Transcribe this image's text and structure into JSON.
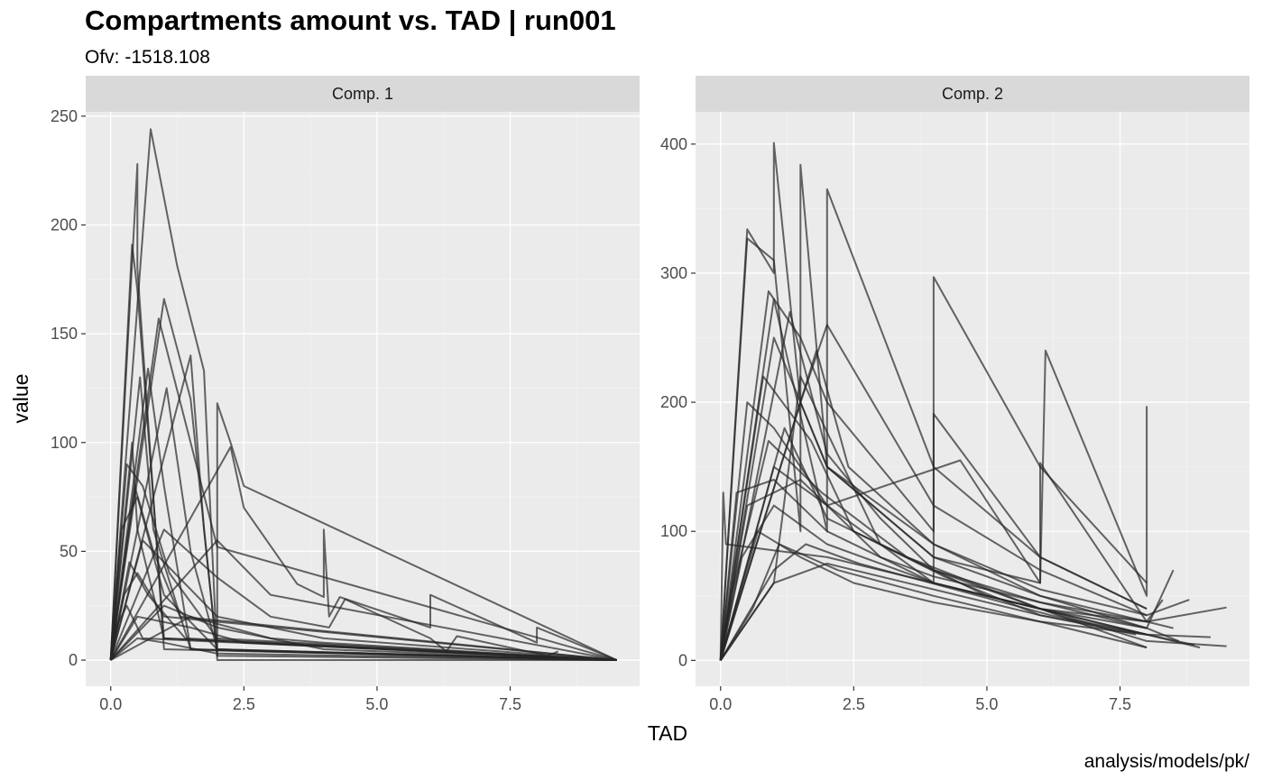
{
  "title": "Compartments amount vs. TAD | run001",
  "subtitle": "Ofv: -1518.108",
  "caption": "analysis/models/pk/",
  "colors": {
    "panel_background": "#ebebeb",
    "strip_background": "#d9d9d9",
    "grid_major": "#ffffff",
    "grid_minor": "#f2f2f2",
    "line": "#262626"
  },
  "chart_data": {
    "type": "line",
    "xlabel": "TAD",
    "ylabel": "value",
    "line_opacity": 0.7,
    "grid": true,
    "facets": [
      {
        "label": "Comp.  1",
        "xlim": [
          -0.47,
          9.93
        ],
        "ylim": [
          -12,
          252
        ],
        "x_ticks": [
          0,
          2.5,
          5,
          7.5
        ],
        "x_tick_labels": [
          "0.0",
          "2.5",
          "5.0",
          "7.5"
        ],
        "y_ticks": [
          0,
          50,
          100,
          150,
          200,
          250
        ],
        "y_tick_labels": [
          "0",
          "50",
          "100",
          "150",
          "200",
          "250"
        ],
        "series": [
          {
            "x": [
              0,
              0.75,
              1.25,
              1.75,
              2.0,
              9.5
            ],
            "y": [
              0,
              244,
              181,
              133,
              0,
              0
            ]
          },
          {
            "x": [
              0,
              0.5,
              0.5,
              1.0,
              9.5
            ],
            "y": [
              0,
              228,
              180,
              5,
              0
            ]
          },
          {
            "x": [
              0,
              0.4,
              0.5,
              1.0,
              9.5
            ],
            "y": [
              0,
              191,
              170,
              10,
              0
            ]
          },
          {
            "x": [
              0,
              1.0,
              1.5,
              2.0,
              2.0,
              2.25,
              2.5,
              9.5
            ],
            "y": [
              0,
              166,
              120,
              2,
              118,
              100,
              80,
              0
            ]
          },
          {
            "x": [
              0,
              0.9,
              1.5,
              2.0,
              9.5
            ],
            "y": [
              0,
              157,
              100,
              52,
              0
            ]
          },
          {
            "x": [
              0,
              1.5,
              1.75,
              2.0,
              9.5
            ],
            "y": [
              0,
              140,
              60,
              2,
              0
            ]
          },
          {
            "x": [
              0,
              0.7,
              1.0,
              1.5,
              9.5
            ],
            "y": [
              0,
              134,
              80,
              5,
              0
            ]
          },
          {
            "x": [
              0,
              0.55,
              0.8,
              1.5,
              9.5
            ],
            "y": [
              0,
              130,
              60,
              5,
              0
            ]
          },
          {
            "x": [
              0,
              2.25,
              2.5,
              3.5,
              4.0,
              4.0,
              4.1,
              4.3,
              6.0,
              6.0,
              8.0,
              8.0,
              9.5
            ],
            "y": [
              0,
              98,
              70,
              35,
              29,
              60,
              20,
              29,
              15,
              30,
              8,
              15,
              0
            ]
          },
          {
            "x": [
              0,
              0.4,
              0.5,
              1.0,
              9.5
            ],
            "y": [
              0,
              100,
              60,
              10,
              0
            ]
          },
          {
            "x": [
              0,
              1.05,
              1.5,
              2.0,
              9.5
            ],
            "y": [
              0,
              125,
              50,
              5,
              0
            ]
          },
          {
            "x": [
              0,
              0.3,
              0.6,
              1.1,
              2.0,
              9.5
            ],
            "y": [
              0,
              90,
              80,
              40,
              10,
              0
            ]
          },
          {
            "x": [
              0,
              0.45,
              0.8,
              1.3,
              9.5
            ],
            "y": [
              0,
              80,
              50,
              20,
              0
            ]
          },
          {
            "x": [
              0,
              0.2,
              0.5,
              1.0,
              2.0,
              9.5
            ],
            "y": [
              0,
              60,
              75,
              30,
              5,
              0
            ]
          },
          {
            "x": [
              0,
              1.0,
              2.0,
              3.0,
              4.1,
              4.4,
              6.0,
              6.3,
              6.5,
              8.2,
              8.4
            ],
            "y": [
              0,
              60,
              38,
              20,
              15,
              28,
              10,
              4,
              11,
              2,
              4
            ]
          },
          {
            "x": [
              0,
              0.6,
              1.2,
              2.0,
              4.0,
              9.5
            ],
            "y": [
              0,
              55,
              40,
              20,
              10,
              0
            ]
          },
          {
            "x": [
              0,
              0.35,
              0.7,
              1.4,
              9.5
            ],
            "y": [
              0,
              45,
              30,
              10,
              0
            ]
          },
          {
            "x": [
              0,
              0.25,
              0.5,
              1.0,
              9.5
            ],
            "y": [
              0,
              30,
              40,
              20,
              0
            ]
          },
          {
            "x": [
              0,
              0.5,
              1.5,
              2.5,
              9.5
            ],
            "y": [
              0,
              20,
              15,
              8,
              0
            ]
          },
          {
            "x": [
              0,
              1.0,
              2.0,
              4.0,
              9.5
            ],
            "y": [
              0,
              25,
              15,
              5,
              0
            ]
          },
          {
            "x": [
              0,
              1.5,
              3.0,
              4.0,
              8.0,
              9.5
            ],
            "y": [
              0,
              20,
              10,
              8,
              2,
              0
            ]
          },
          {
            "x": [
              0,
              2.0,
              3.0,
              9.5
            ],
            "y": [
              0,
              55,
              30,
              0
            ]
          },
          {
            "x": [
              0,
              0.5,
              1.0,
              2.0,
              9.5
            ],
            "y": [
              0,
              10,
              8,
              3,
              0
            ]
          },
          {
            "x": [
              0,
              0.1,
              0.3,
              0.6,
              9.5
            ],
            "y": [
              0,
              15,
              25,
              10,
              0
            ]
          }
        ]
      },
      {
        "label": "Comp.  2",
        "xlim": [
          -0.47,
          9.93
        ],
        "ylim": [
          -20,
          425
        ],
        "x_ticks": [
          0,
          2.5,
          5,
          7.5
        ],
        "x_tick_labels": [
          "0.0",
          "2.5",
          "5.0",
          "7.5"
        ],
        "y_ticks": [
          0,
          100,
          200,
          300,
          400
        ],
        "y_tick_labels": [
          "0",
          "100",
          "200",
          "300",
          "400"
        ],
        "series": [
          {
            "x": [
              0,
              0.5,
              1.0,
              1.0,
              1.5,
              2.0,
              4.0,
              6.0,
              8.0,
              8.5
            ],
            "y": [
              0,
              334,
              300,
              401,
              200,
              150,
              90,
              50,
              30,
              25
            ]
          },
          {
            "x": [
              0,
              0.5,
              1.0,
              1.5,
              1.5,
              2.0,
              4.0,
              6.0,
              8.0
            ],
            "y": [
              0,
              327,
              310,
              100,
              384,
              150,
              80,
              50,
              25
            ]
          },
          {
            "x": [
              0,
              1.0,
              2.0,
              2.0,
              4.0,
              6.0,
              8.0
            ],
            "y": [
              0,
              280,
              100,
              365,
              150,
              80,
              40
            ]
          },
          {
            "x": [
              0,
              0.9,
              1.5,
              2.0,
              4.0,
              4.0,
              6.0,
              8.0
            ],
            "y": [
              0,
              286,
              250,
              200,
              100,
              297,
              150,
              60
            ]
          },
          {
            "x": [
              0,
              1.0,
              2.0,
              4.0,
              6.0,
              6.1,
              8.0,
              8.0
            ],
            "y": [
              0,
              250,
              150,
              80,
              60,
              240,
              50,
              197
            ]
          },
          {
            "x": [
              0,
              1.5,
              2.0,
              4.0,
              6.0,
              8.0,
              8.8
            ],
            "y": [
              0,
              200,
              260,
              120,
              70,
              35,
              47
            ]
          },
          {
            "x": [
              0,
              0.5,
              1.0,
              2.0,
              4.0,
              4.0,
              6.0,
              8.0
            ],
            "y": [
              0,
              200,
              180,
              120,
              60,
              191,
              80,
              40
            ]
          },
          {
            "x": [
              0,
              1.0,
              2.0,
              4.5,
              6.0,
              6.0,
              8.0,
              8.3
            ],
            "y": [
              0,
              150,
              120,
              155,
              60,
              153,
              30,
              47
            ]
          },
          {
            "x": [
              0,
              0.3,
              1.0,
              2.0,
              4.0,
              6.0,
              8.0,
              8.5
            ],
            "y": [
              0,
              130,
              140,
              100,
              60,
              40,
              25,
              70
            ]
          },
          {
            "x": [
              0,
              1.2,
              2.0,
              4.0,
              6.0,
              8.0,
              9.5
            ],
            "y": [
              0,
              180,
              110,
              70,
              40,
              30,
              41
            ]
          },
          {
            "x": [
              0,
              0.7,
              1.5,
              2.5,
              4.0,
              6.0,
              8.0
            ],
            "y": [
              0,
              100,
              80,
              60,
              45,
              30,
              20
            ]
          },
          {
            "x": [
              0,
              1.0,
              1.5,
              3.0,
              5.0,
              7.0,
              8.0,
              9.0
            ],
            "y": [
              0,
              60,
              220,
              90,
              50,
              30,
              20,
              10
            ]
          },
          {
            "x": [
              0,
              0.4,
              1.0,
              2.0,
              4.0,
              6.0,
              8.0,
              9.5
            ],
            "y": [
              0,
              80,
              120,
              90,
              60,
              40,
              15,
              11
            ]
          },
          {
            "x": [
              0,
              0.6,
              1.1,
              2.2,
              4.0,
              6.0,
              8.0
            ],
            "y": [
              0,
              40,
              90,
              70,
              50,
              30,
              10
            ]
          },
          {
            "x": [
              0,
              1.3,
              2.0,
              3.0,
              4.0,
              6.0,
              8.0,
              8.6
            ],
            "y": [
              0,
              270,
              160,
              110,
              70,
              45,
              25,
              15
            ]
          },
          {
            "x": [
              0,
              0.8,
              1.7,
              2.5,
              4.2,
              6.0,
              7.8
            ],
            "y": [
              0,
              220,
              170,
              100,
              65,
              35,
              20
            ]
          },
          {
            "x": [
              0,
              1.0,
              2.0,
              4.0,
              6.0,
              8.0,
              9.2
            ],
            "y": [
              0,
              60,
              75,
              55,
              35,
              20,
              18
            ]
          },
          {
            "x": [
              0,
              0.5,
              1.5,
              3.0,
              4.0,
              6.0,
              8.0
            ],
            "y": [
              0,
              120,
              140,
              80,
              65,
              45,
              30
            ]
          },
          {
            "x": [
              0,
              1.8,
              2.4,
              4.0,
              6.0,
              8.0
            ],
            "y": [
              0,
              240,
              150,
              90,
              55,
              35
            ]
          },
          {
            "x": [
              0,
              0.2,
              0.9,
              1.9,
              3.5,
              6.0,
              8.0
            ],
            "y": [
              0,
              50,
              170,
              130,
              80,
              40,
              20
            ]
          },
          {
            "x": [
              0,
              1.0,
              1.6,
              2.6,
              4.4,
              6.2,
              8.0,
              8.9
            ],
            "y": [
              0,
              70,
              90,
              75,
              55,
              35,
              20,
              12
            ]
          },
          {
            "x": [
              0,
              0.05,
              0.1,
              2.0,
              6.0,
              8.0
            ],
            "y": [
              0,
              130,
              90,
              80,
              40,
              10
            ]
          }
        ]
      }
    ]
  }
}
